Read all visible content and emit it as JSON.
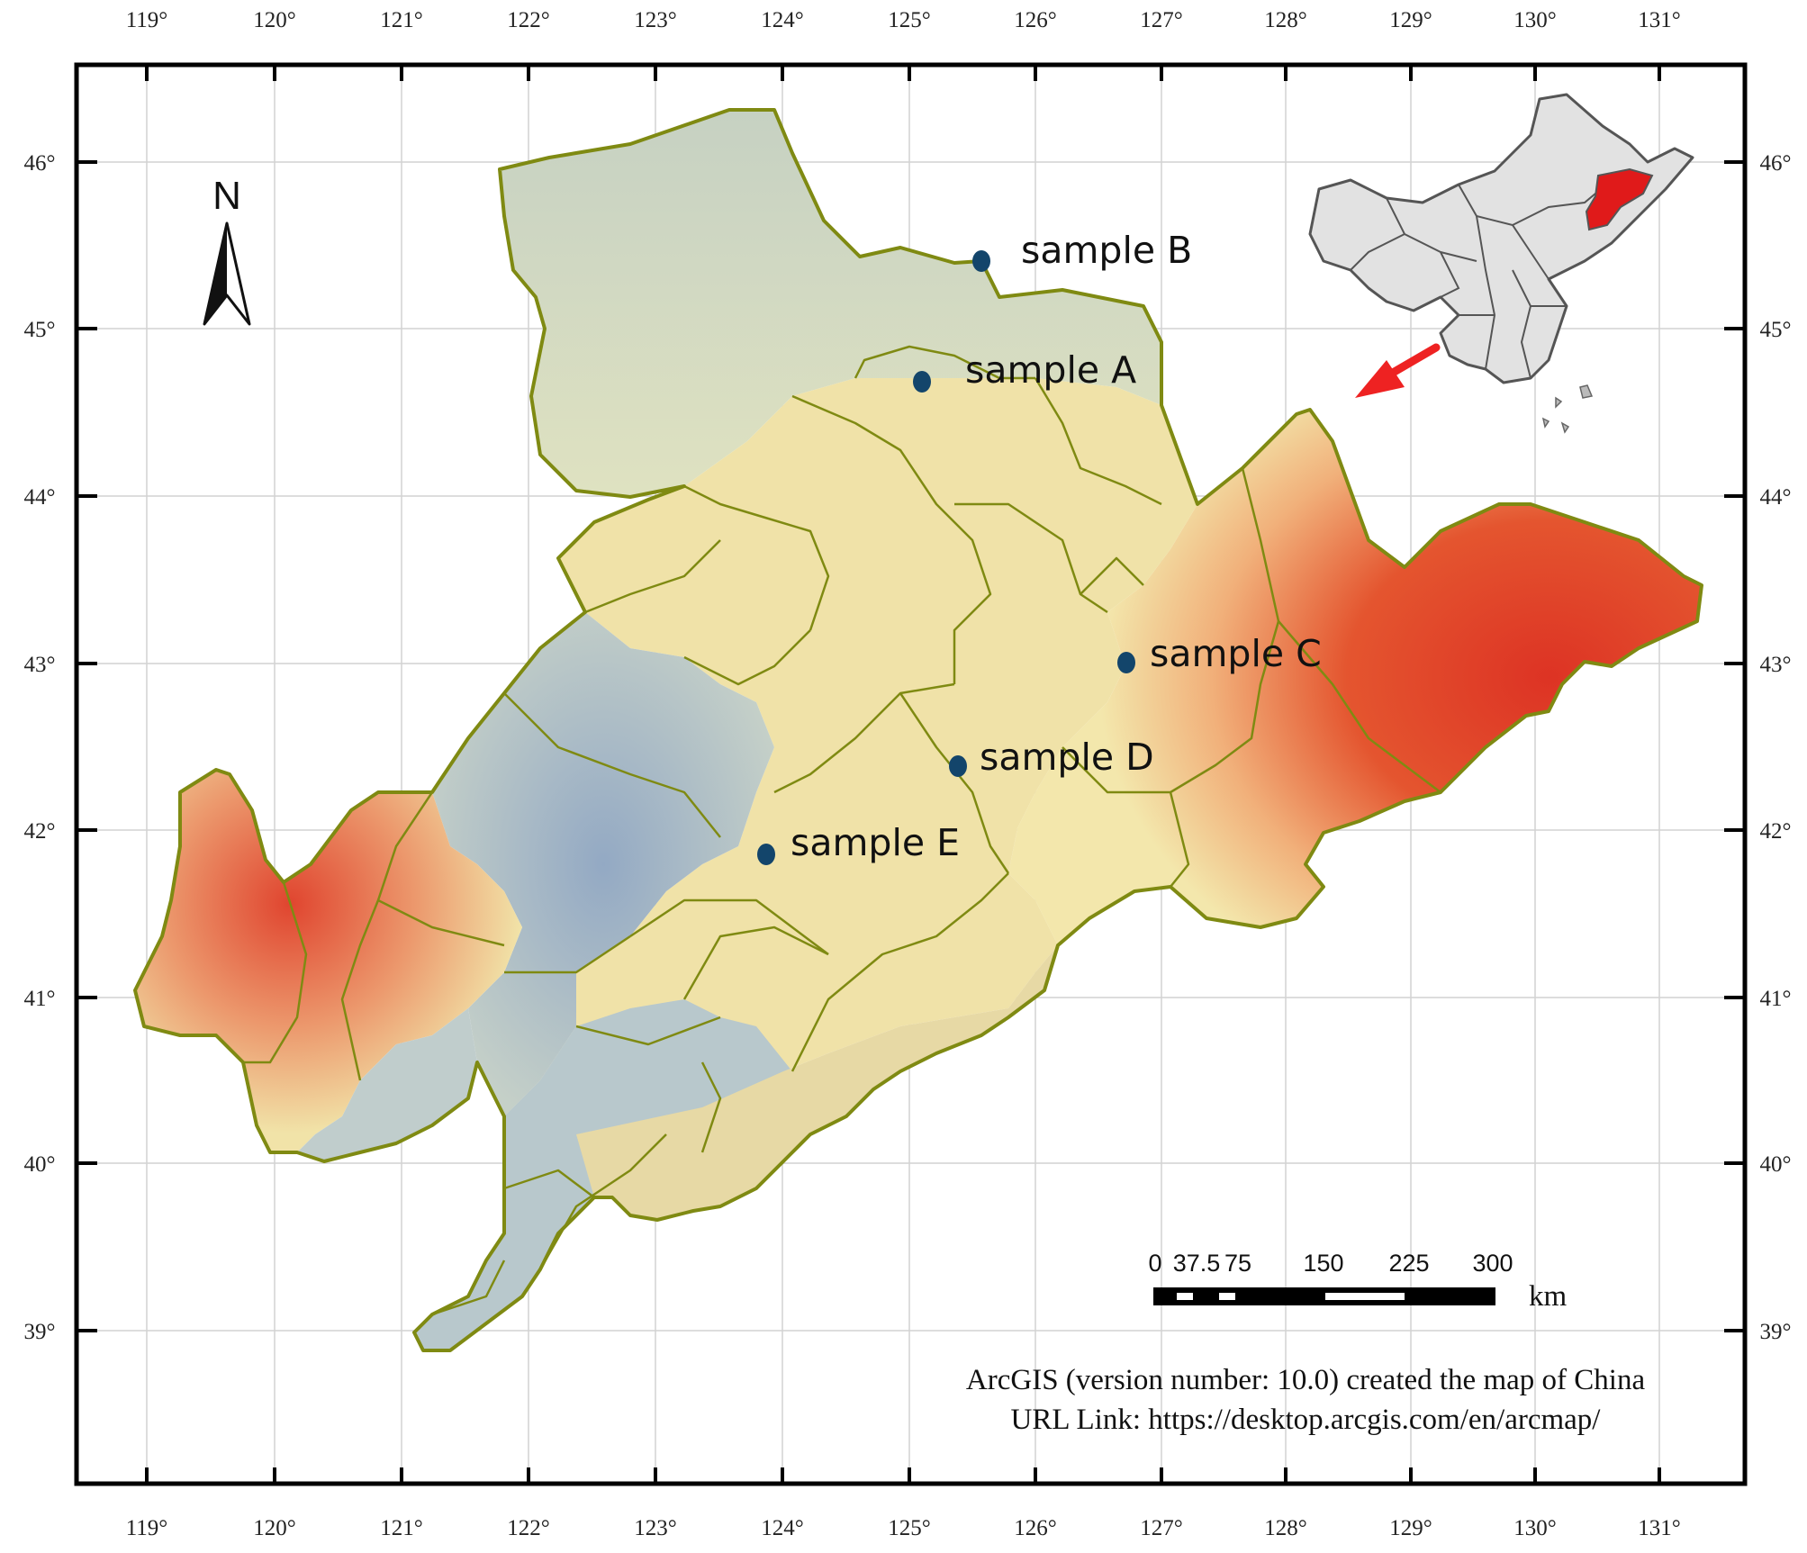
{
  "map": {
    "longitude_ticks": [
      "119°",
      "120°",
      "121°",
      "122°",
      "123°",
      "124°",
      "125°",
      "126°",
      "127°",
      "128°",
      "129°",
      "130°",
      "131°"
    ],
    "latitude_ticks": [
      "46°",
      "45°",
      "44°",
      "43°",
      "42°",
      "41°",
      "40°",
      "39°"
    ],
    "north_arrow_label": "N",
    "samples": [
      {
        "label": "sample A"
      },
      {
        "label": "sample B"
      },
      {
        "label": "sample C"
      },
      {
        "label": "sample D"
      },
      {
        "label": "sample E"
      }
    ],
    "scale_bar": {
      "labels": [
        "0",
        "37.5",
        "75",
        "150",
        "225",
        "300"
      ],
      "unit": "km"
    },
    "credit": {
      "line1": "ArcGIS (version number: 10.0) created the map of China",
      "line2": "URL Link: https://desktop.arcgis.com/en/arcmap/"
    },
    "colors": {
      "frame": "#000000",
      "gridline": "#d2d2d2",
      "province_boundary": "#7f8a12",
      "lowland": "#9aaec4",
      "midland": "#f2eab0",
      "highland": "#e0392c",
      "sample_marker": "#13456b",
      "inset_fill": "#e2e2e2",
      "inset_highlight": "#e01a1a",
      "arrow": "#ee2222"
    }
  }
}
